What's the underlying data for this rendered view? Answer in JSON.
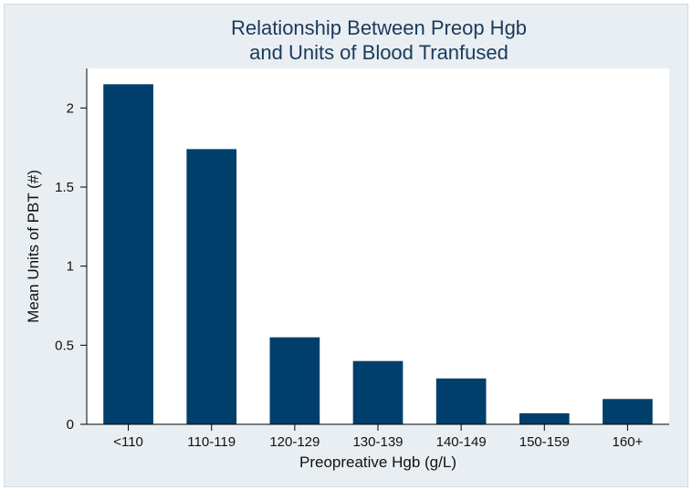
{
  "chart_data": {
    "type": "bar",
    "title_lines": [
      "Relationship Between Preop Hgb",
      "and Units of Blood Tranfused"
    ],
    "xlabel": "Preopreative Hgb (g/L)",
    "ylabel": "Mean Units of PBT (#)",
    "categories": [
      "<110",
      "110-119",
      "120-129",
      "130-139",
      "140-149",
      "150-159",
      "160+"
    ],
    "values": [
      2.15,
      1.74,
      0.55,
      0.4,
      0.29,
      0.07,
      0.16
    ],
    "ylim": [
      0,
      2.25
    ],
    "yticks": [
      0,
      0.5,
      1,
      1.5,
      2
    ],
    "ytick_labels": [
      "0",
      "0.5",
      "1",
      "1.5",
      "2"
    ],
    "grid": false,
    "legend": false,
    "colors": {
      "bar": "#003f6b",
      "background": "#e9eef2",
      "plot_area": "#ffffff",
      "title": "#1a3a5c"
    }
  }
}
